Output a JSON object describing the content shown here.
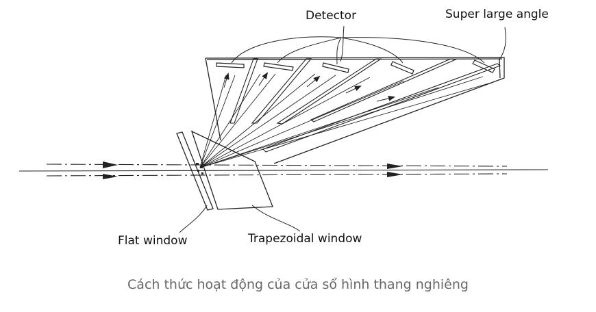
{
  "labels": {
    "detector": "Detector",
    "super_large_angle": "Super large angle",
    "flat_window": "Flat window",
    "trapezoidal_window": "Trapezoidal window"
  },
  "caption": "Cách thức hoạt động của cửa sổ hình thang nghiêng",
  "colors": {
    "line": "#222222",
    "caption": "#666666"
  }
}
